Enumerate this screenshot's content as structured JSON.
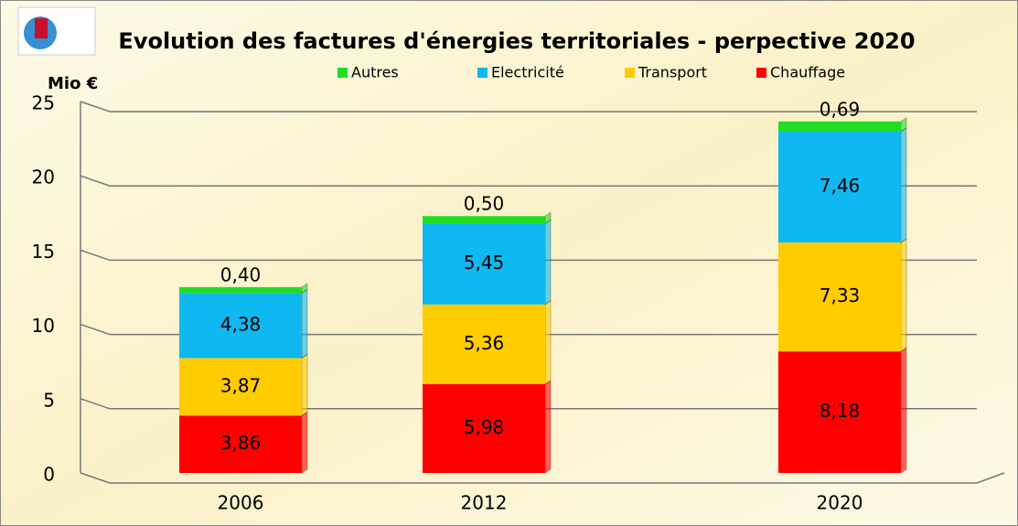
{
  "chart_data": {
    "type": "bar",
    "stacked": true,
    "title": "Evolution des factures d'énergies territoriales - perpective 2020",
    "y_axis_label": "Mio €",
    "categories": [
      "2006",
      "2012",
      "2020"
    ],
    "series": [
      {
        "name": "Chauffage",
        "color": "#ff0000",
        "values": [
          3.86,
          5.98,
          8.18
        ],
        "value_labels": [
          "3,86",
          "5,98",
          "8,18"
        ]
      },
      {
        "name": "Transport",
        "color": "#ffcc00",
        "values": [
          3.87,
          5.36,
          7.33
        ],
        "value_labels": [
          "3,87",
          "5,36",
          "7,33"
        ]
      },
      {
        "name": "Electricité",
        "color": "#0fb8f0",
        "values": [
          4.38,
          5.45,
          7.46
        ],
        "value_labels": [
          "4,38",
          "5,45",
          "7,46"
        ]
      },
      {
        "name": "Autres",
        "color": "#22dd22",
        "values": [
          0.4,
          0.5,
          0.69
        ],
        "value_labels": [
          "0,40",
          "0,50",
          "0,69"
        ]
      }
    ],
    "ylim": [
      0,
      25
    ],
    "yticks": [
      0,
      5,
      10,
      15,
      20,
      25
    ],
    "grid": true
  }
}
